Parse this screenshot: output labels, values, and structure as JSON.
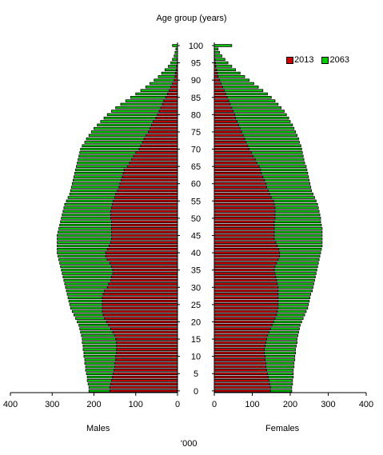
{
  "chart_data": {
    "type": "bar",
    "title": "Age group (years)",
    "panel_labels": {
      "left": "Males",
      "right": "Females"
    },
    "unit_label": "'000",
    "legend": [
      {
        "name": "2013",
        "color": "#cc0000"
      },
      {
        "name": "2063",
        "color": "#00cc00"
      }
    ],
    "legend_position": "top-right",
    "xlim": [
      0,
      400
    ],
    "x_ticks": [
      0,
      100,
      200,
      300,
      400
    ],
    "y_ticks": [
      0,
      5,
      10,
      15,
      20,
      25,
      30,
      35,
      40,
      45,
      50,
      55,
      60,
      65,
      70,
      75,
      80,
      85,
      90,
      95,
      100
    ],
    "ages": [
      0,
      1,
      2,
      3,
      4,
      5,
      6,
      7,
      8,
      9,
      10,
      11,
      12,
      13,
      14,
      15,
      16,
      17,
      18,
      19,
      20,
      21,
      22,
      23,
      24,
      25,
      26,
      27,
      28,
      29,
      30,
      31,
      32,
      33,
      34,
      35,
      36,
      37,
      38,
      39,
      40,
      41,
      42,
      43,
      44,
      45,
      46,
      47,
      48,
      49,
      50,
      51,
      52,
      53,
      54,
      55,
      56,
      57,
      58,
      59,
      60,
      61,
      62,
      63,
      64,
      65,
      66,
      67,
      68,
      69,
      70,
      71,
      72,
      73,
      74,
      75,
      76,
      77,
      78,
      79,
      80,
      81,
      82,
      83,
      84,
      85,
      86,
      87,
      88,
      89,
      90,
      91,
      92,
      93,
      94,
      95,
      96,
      97,
      98,
      99,
      100
    ],
    "series": [
      {
        "name": "2013",
        "sex": "Males",
        "values": [
          162,
          162,
          160,
          158,
          156,
          154,
          152,
          150,
          150,
          148,
          148,
          146,
          146,
          146,
          146,
          148,
          150,
          155,
          160,
          165,
          170,
          175,
          178,
          180,
          180,
          180,
          180,
          180,
          178,
          175,
          168,
          165,
          160,
          158,
          155,
          155,
          158,
          162,
          168,
          172,
          172,
          168,
          164,
          160,
          158,
          158,
          158,
          158,
          158,
          158,
          160,
          160,
          160,
          158,
          156,
          154,
          150,
          148,
          144,
          140,
          138,
          135,
          132,
          130,
          128,
          120,
          115,
          110,
          105,
          100,
          92,
          88,
          84,
          80,
          75,
          70,
          66,
          62,
          58,
          52,
          48,
          44,
          40,
          36,
          33,
          28,
          24,
          20,
          16,
          12,
          8,
          6,
          5,
          3,
          2,
          1,
          1,
          0,
          0,
          0,
          0
        ]
      },
      {
        "name": "2063",
        "sex": "Males",
        "values": [
          212,
          212,
          214,
          216,
          216,
          218,
          220,
          220,
          222,
          222,
          224,
          224,
          226,
          226,
          228,
          228,
          230,
          232,
          234,
          236,
          240,
          244,
          248,
          252,
          256,
          258,
          260,
          262,
          264,
          266,
          268,
          270,
          272,
          274,
          276,
          278,
          280,
          282,
          284,
          286,
          288,
          288,
          288,
          288,
          288,
          288,
          286,
          284,
          282,
          280,
          278,
          276,
          274,
          272,
          270,
          266,
          262,
          258,
          256,
          254,
          252,
          250,
          248,
          246,
          244,
          242,
          240,
          238,
          236,
          234,
          232,
          228,
          222,
          218,
          212,
          206,
          200,
          192,
          184,
          176,
          168,
          158,
          148,
          136,
          124,
          112,
          100,
          88,
          76,
          66,
          56,
          46,
          38,
          30,
          22,
          16,
          12,
          8,
          6,
          4,
          12
        ]
      },
      {
        "name": "2013",
        "sex": "Females",
        "values": [
          148,
          148,
          146,
          144,
          142,
          140,
          138,
          136,
          136,
          134,
          134,
          132,
          132,
          134,
          136,
          138,
          140,
          144,
          148,
          152,
          156,
          160,
          164,
          166,
          168,
          168,
          168,
          168,
          168,
          168,
          168,
          166,
          164,
          162,
          160,
          158,
          160,
          164,
          168,
          172,
          172,
          170,
          166,
          162,
          158,
          158,
          158,
          158,
          158,
          158,
          160,
          160,
          160,
          160,
          158,
          156,
          150,
          146,
          142,
          138,
          136,
          132,
          128,
          124,
          122,
          118,
          112,
          108,
          102,
          98,
          92,
          88,
          84,
          80,
          76,
          72,
          68,
          64,
          60,
          56,
          54,
          50,
          46,
          42,
          38,
          34,
          30,
          26,
          22,
          18,
          14,
          10,
          8,
          6,
          4,
          3,
          2,
          1,
          1,
          0,
          0
        ]
      },
      {
        "name": "2063",
        "sex": "Females",
        "values": [
          204,
          204,
          206,
          206,
          208,
          208,
          208,
          210,
          210,
          212,
          212,
          214,
          214,
          216,
          218,
          218,
          220,
          222,
          224,
          226,
          230,
          234,
          238,
          242,
          246,
          248,
          250,
          252,
          254,
          258,
          260,
          262,
          264,
          266,
          268,
          270,
          272,
          274,
          276,
          278,
          280,
          282,
          284,
          284,
          284,
          284,
          284,
          284,
          282,
          280,
          280,
          278,
          276,
          274,
          272,
          268,
          264,
          260,
          256,
          254,
          252,
          250,
          248,
          246,
          244,
          242,
          238,
          236,
          234,
          232,
          230,
          228,
          224,
          222,
          218,
          214,
          210,
          206,
          200,
          196,
          190,
          184,
          176,
          168,
          160,
          150,
          140,
          128,
          116,
          104,
          92,
          80,
          68,
          56,
          46,
          36,
          28,
          20,
          14,
          10,
          46
        ]
      }
    ]
  }
}
